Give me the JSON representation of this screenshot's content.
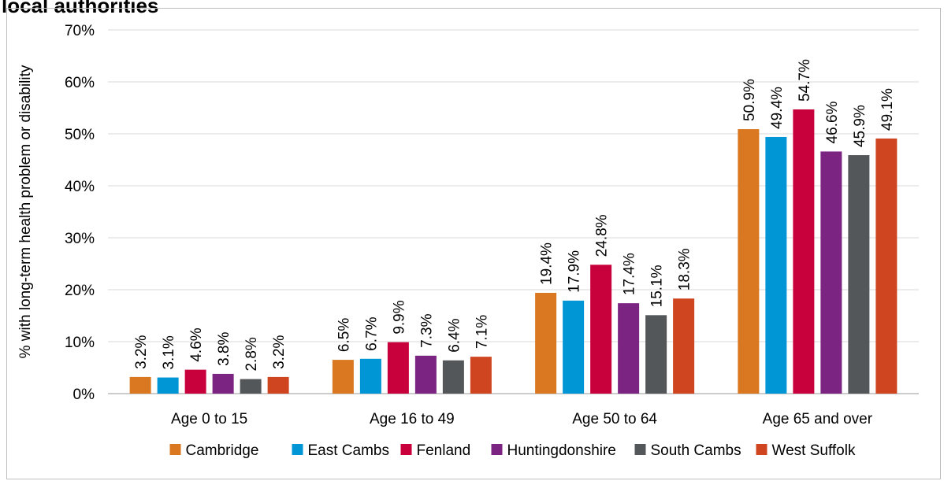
{
  "chart_data": {
    "type": "bar",
    "title": "local authorities",
    "ylabel": "% with long-term health problem or disability",
    "xlabel": "",
    "ylim": [
      0,
      70
    ],
    "yticks": [
      0,
      10,
      20,
      30,
      40,
      50,
      60,
      70
    ],
    "ytick_labels": [
      "0%",
      "10%",
      "20%",
      "30%",
      "40%",
      "50%",
      "60%",
      "70%"
    ],
    "grid": true,
    "legend_position": "bottom",
    "categories": [
      "Age 0 to 15",
      "Age 16 to 49",
      "Age 50 to 64",
      "Age 65 and over"
    ],
    "series": [
      {
        "name": "Cambridge",
        "color": "#d97821",
        "values": [
          3.2,
          6.5,
          19.4,
          50.9
        ],
        "labels": [
          "3.2%",
          "6.5%",
          "19.4%",
          "50.9%"
        ]
      },
      {
        "name": "East Cambs",
        "color": "#0096d6",
        "values": [
          3.1,
          6.7,
          17.9,
          49.4
        ],
        "labels": [
          "3.1%",
          "6.7%",
          "17.9%",
          "49.4%"
        ]
      },
      {
        "name": "Fenland",
        "color": "#c8003c",
        "values": [
          4.6,
          9.9,
          24.8,
          54.7
        ],
        "labels": [
          "4.6%",
          "9.9%",
          "24.8%",
          "54.7%"
        ]
      },
      {
        "name": "Huntingdonshire",
        "color": "#7b2481",
        "values": [
          3.8,
          7.3,
          17.4,
          46.6
        ],
        "labels": [
          "3.8%",
          "7.3%",
          "17.4%",
          "46.6%"
        ]
      },
      {
        "name": "South Cambs",
        "color": "#53575a",
        "values": [
          2.8,
          6.4,
          15.1,
          45.9
        ],
        "labels": [
          "2.8%",
          "6.4%",
          "15.1%",
          "45.9%"
        ]
      },
      {
        "name": "West Suffolk",
        "color": "#cf4520",
        "values": [
          3.2,
          7.1,
          18.3,
          49.1
        ],
        "labels": [
          "3.2%",
          "7.1%",
          "18.3%",
          "49.1%"
        ]
      }
    ]
  }
}
